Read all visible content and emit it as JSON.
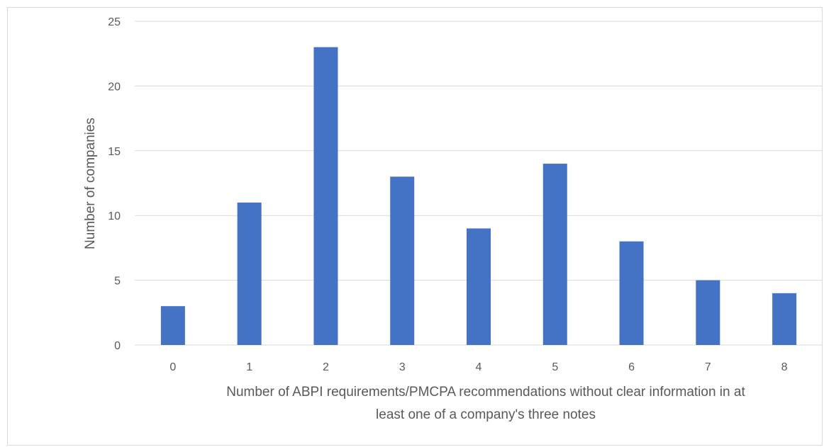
{
  "chart_data": {
    "type": "bar",
    "title": "",
    "categories": [
      "0",
      "1",
      "2",
      "3",
      "4",
      "5",
      "6",
      "7",
      "8"
    ],
    "values": [
      3,
      11,
      23,
      13,
      9,
      14,
      8,
      5,
      4
    ],
    "xlabel_lines": [
      "Number of ABPI requirements/PMCPA recommendations without clear information in at",
      "least one of a company's three notes"
    ],
    "ylabel": "Number of companies",
    "ylim": [
      0,
      25
    ],
    "yticks": [
      0,
      5,
      10,
      15,
      20,
      25
    ],
    "grid": true,
    "legend": "none",
    "bar_color": "#4472c4",
    "grid_color": "#d9d9d9"
  }
}
